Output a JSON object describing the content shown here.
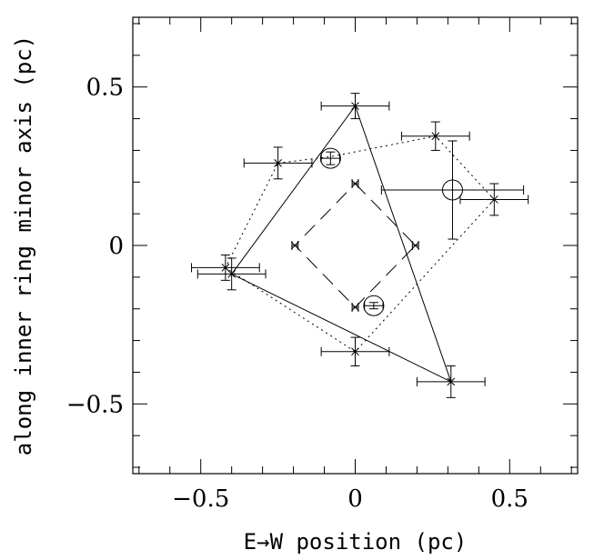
{
  "chart_data": {
    "type": "scatter",
    "title": "",
    "xlabel": "E→W position (pc)",
    "ylabel": "along inner ring minor axis (pc)",
    "xlim": [
      -0.72,
      0.72
    ],
    "ylim": [
      -0.72,
      0.72
    ],
    "grid": false,
    "x_ticks": [
      -0.5,
      0,
      0.5
    ],
    "x_tick_labels": [
      "−0.5",
      "0",
      "0.5"
    ],
    "y_ticks": [
      -0.5,
      0,
      0.5
    ],
    "y_tick_labels": [
      "−0.5",
      "0",
      "0.5"
    ],
    "series": [
      {
        "style": "solid",
        "marker": "x",
        "points": [
          {
            "x": -0.4,
            "y": -0.09,
            "xerr": 0.11,
            "yerr": 0.05
          },
          {
            "x": 0.0,
            "y": 0.44,
            "xerr": 0.11,
            "yerr": 0.04
          },
          {
            "x": 0.31,
            "y": -0.43,
            "xerr": 0.11,
            "yerr": 0.05
          }
        ],
        "path": [
          [
            -0.4,
            -0.09
          ],
          [
            0.0,
            0.44
          ],
          [
            0.31,
            -0.43
          ],
          [
            -0.4,
            -0.09
          ]
        ]
      },
      {
        "style": "dotted",
        "marker": "x",
        "points": [
          {
            "x": -0.25,
            "y": 0.26,
            "xerr": 0.11,
            "yerr": 0.05
          },
          {
            "x": 0.26,
            "y": 0.345,
            "xerr": 0.11,
            "yerr": 0.045
          },
          {
            "x": 0.45,
            "y": 0.145,
            "xerr": 0.11,
            "yerr": 0.05
          },
          {
            "x": 0.0,
            "y": -0.335,
            "xerr": 0.11,
            "yerr": 0.045
          },
          {
            "x": -0.42,
            "y": -0.07,
            "xerr": 0.11,
            "yerr": 0.04
          }
        ],
        "path": [
          [
            -0.25,
            0.26
          ],
          [
            -0.08,
            0.28
          ],
          [
            0.26,
            0.345
          ],
          [
            0.45,
            0.145
          ],
          [
            0.0,
            -0.335
          ],
          [
            -0.42,
            -0.07
          ],
          [
            -0.25,
            0.26
          ]
        ]
      },
      {
        "style": "dashed",
        "marker": "x",
        "points": [
          {
            "x": 0.0,
            "y": 0.195,
            "xerr": 0.01,
            "yerr": 0.0
          },
          {
            "x": 0.195,
            "y": 0.0,
            "xerr": 0.01,
            "yerr": 0.0
          },
          {
            "x": 0.0,
            "y": -0.195,
            "xerr": 0.01,
            "yerr": 0.0
          },
          {
            "x": -0.195,
            "y": 0.0,
            "xerr": 0.01,
            "yerr": 0.0
          }
        ],
        "path": [
          [
            0.0,
            0.195
          ],
          [
            0.195,
            0.0
          ],
          [
            0.0,
            -0.195
          ],
          [
            -0.195,
            0.0
          ],
          [
            0.0,
            0.195
          ]
        ]
      },
      {
        "style": "none",
        "marker": "circle",
        "points": [
          {
            "x": -0.08,
            "y": 0.275,
            "xerr": 0.03,
            "yerr": 0.02,
            "size": 1.0
          },
          {
            "x": 0.315,
            "y": 0.175,
            "xerr": 0.23,
            "yerr": 0.155,
            "size": 1.0
          },
          {
            "x": 0.06,
            "y": -0.19,
            "xerr": 0.03,
            "yerr": 0.01,
            "size": 1.0
          }
        ]
      }
    ]
  }
}
